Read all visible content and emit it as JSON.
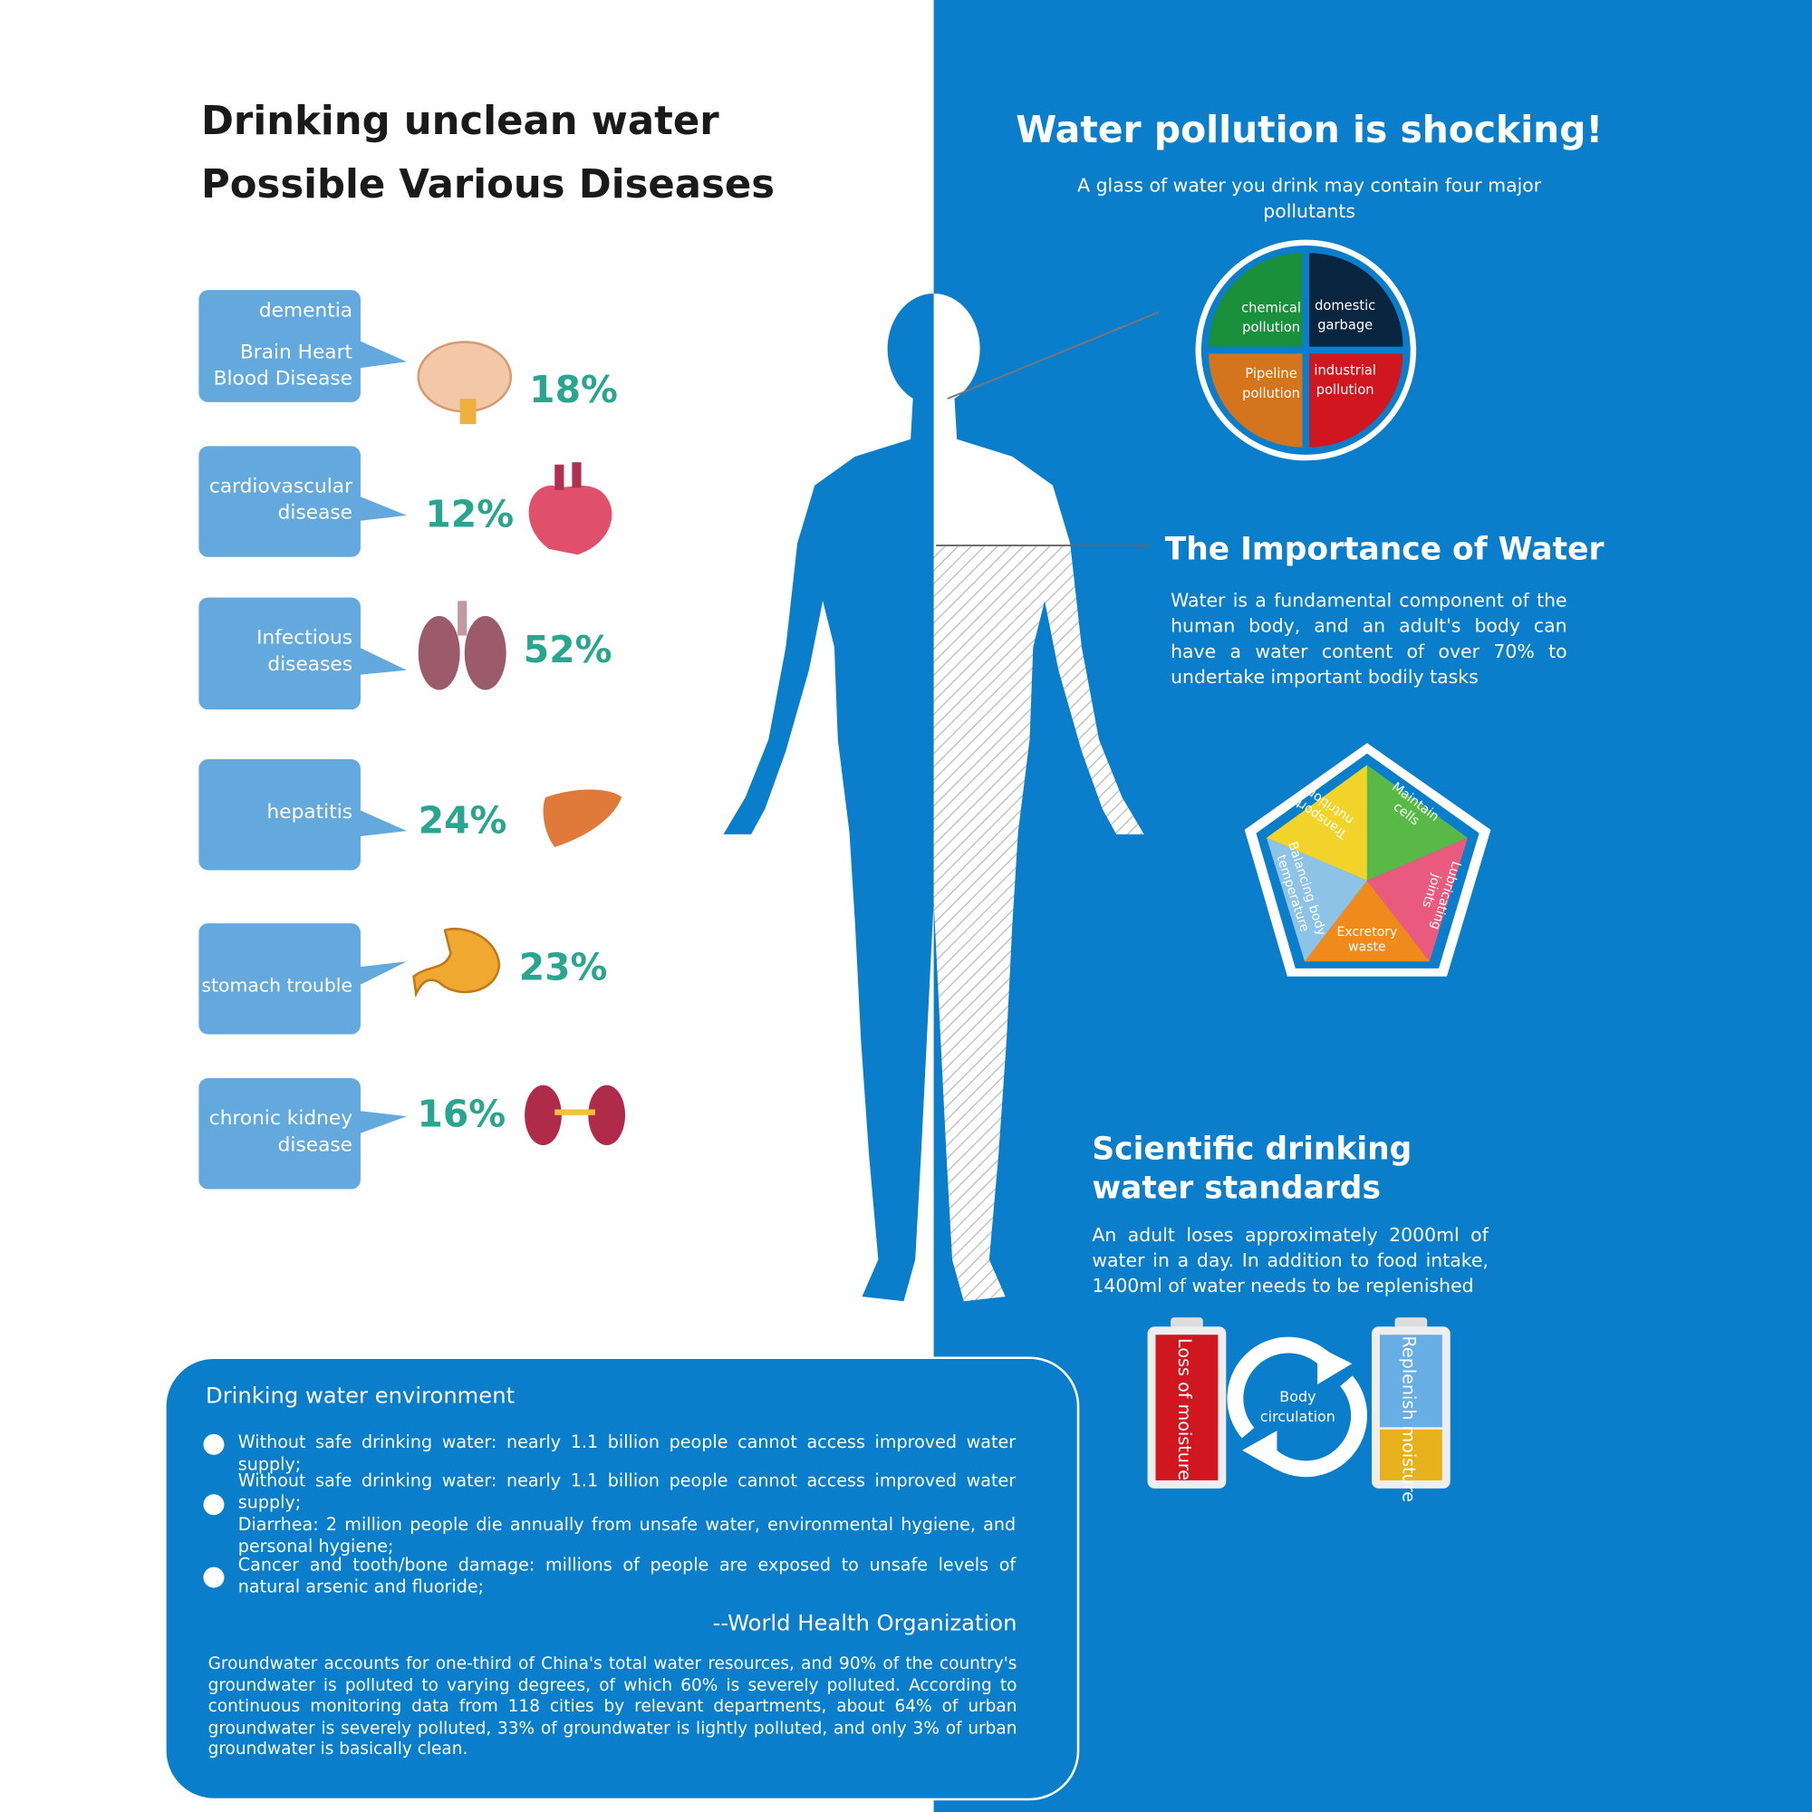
{
  "left": {
    "title_lines": [
      "Drinking unclean water",
      "Possible Various Diseases"
    ]
  },
  "diseases": [
    {
      "labels": [
        "dementia",
        "Brain Heart Blood Disease"
      ],
      "percent": "18%"
    },
    {
      "labels": [
        "cardiovascular disease"
      ],
      "percent": "12%"
    },
    {
      "labels": [
        "Infectious diseases"
      ],
      "percent": "52%"
    },
    {
      "labels": [
        "hepatitis"
      ],
      "percent": "24%"
    },
    {
      "labels": [
        "stomach trouble"
      ],
      "percent": "23%"
    },
    {
      "labels": [
        "chronic kidney disease"
      ],
      "percent": "16%"
    }
  ],
  "pollution": {
    "title": "Water pollution is shocking!",
    "subtitle": "A glass of water you drink may contain four major pollutants",
    "pollutants": [
      "chemical pollution",
      "domestic garbage",
      "Pipeline pollution",
      "industrial pollution"
    ]
  },
  "importance": {
    "title": "The Importance of Water",
    "text": "Water is a fundamental component of the human body, and an adult's body can have a water content of over 70% to undertake important bodily tasks",
    "functions": [
      "Transport nutrition",
      "Maintain cells",
      "Lubricating joints",
      "Excretory waste",
      "Balancing body temperature"
    ]
  },
  "standards": {
    "title": "Scientific drinking water standards",
    "text": "An adult loses approximately 2000ml of water in a day. In addition to food intake, 1400ml of water needs to be replenished",
    "loss": "Loss of moisture",
    "circulation": "Body circulation",
    "replenish": "Replenish moisture"
  },
  "environment": {
    "title": "Drinking water environment",
    "bullets": [
      [
        "Without safe drinking water: nearly 1.1 billion people cannot access improved water supply;"
      ],
      [
        "Without safe drinking water: nearly 1.1 billion people cannot access improved water supply;",
        "Diarrhea: 2 million people die annually from unsafe water, environmental hygiene, and personal hygiene;"
      ],
      [
        "Cancer and tooth/bone damage: millions of people are exposed to unsafe levels of natural arsenic and fluoride;"
      ]
    ],
    "attribution": "--World Health Organization",
    "paragraph": "Groundwater accounts for one-third of China's total water resources, and 90% of the country's groundwater is polluted to varying degrees, of which 60% is severely polluted. According to continuous monitoring data from 118 cities by relevant departments, about 64% of urban groundwater is severely polluted, 33% of groundwater is lightly polluted, and only 3% of urban groundwater is basically clean."
  }
}
